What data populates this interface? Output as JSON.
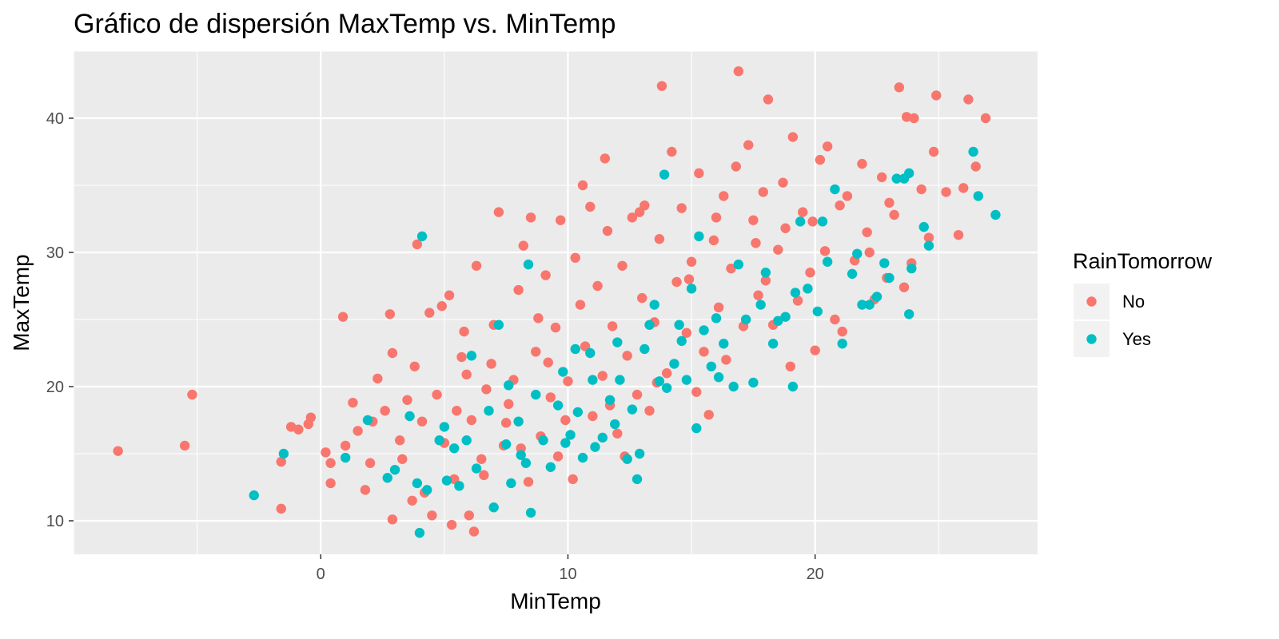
{
  "chart_data": {
    "type": "scatter",
    "title": "Gráfico de dispersión MaxTemp vs. MinTemp",
    "xlabel": "MinTemp",
    "ylabel": "MaxTemp",
    "xlim": [
      -10,
      29
    ],
    "ylim": [
      7.5,
      45
    ],
    "x_ticks": [
      0,
      10,
      20
    ],
    "y_ticks": [
      10,
      20,
      30,
      40
    ],
    "grid": true,
    "legend": {
      "title": "RainTomorrow",
      "position": "right"
    },
    "series": [
      {
        "name": "No",
        "color": "#F8766D",
        "points": [
          [
            -8.2,
            15.2
          ],
          [
            -5.5,
            15.6
          ],
          [
            -5.2,
            19.4
          ],
          [
            -1.6,
            10.9
          ],
          [
            -1.6,
            14.4
          ],
          [
            -1.2,
            17.0
          ],
          [
            -0.9,
            16.8
          ],
          [
            -0.5,
            17.2
          ],
          [
            -0.4,
            17.7
          ],
          [
            0.2,
            15.1
          ],
          [
            0.4,
            12.8
          ],
          [
            0.4,
            14.3
          ],
          [
            0.9,
            25.2
          ],
          [
            1.0,
            15.6
          ],
          [
            1.5,
            16.7
          ],
          [
            1.8,
            12.3
          ],
          [
            2.0,
            14.3
          ],
          [
            2.3,
            20.6
          ],
          [
            2.6,
            18.2
          ],
          [
            2.9,
            10.1
          ],
          [
            2.9,
            22.5
          ],
          [
            2.8,
            25.4
          ],
          [
            3.2,
            16.0
          ],
          [
            3.5,
            19.0
          ],
          [
            3.7,
            11.5
          ],
          [
            3.8,
            21.5
          ],
          [
            3.9,
            30.6
          ],
          [
            4.2,
            12.1
          ],
          [
            4.4,
            25.5
          ],
          [
            4.5,
            10.4
          ],
          [
            4.7,
            19.4
          ],
          [
            4.9,
            26.0
          ],
          [
            5.0,
            15.8
          ],
          [
            5.2,
            26.8
          ],
          [
            5.3,
            9.7
          ],
          [
            5.4,
            13.1
          ],
          [
            5.5,
            18.2
          ],
          [
            5.7,
            22.2
          ],
          [
            5.8,
            24.1
          ],
          [
            6.0,
            10.4
          ],
          [
            6.1,
            17.5
          ],
          [
            6.2,
            9.2
          ],
          [
            6.3,
            29.0
          ],
          [
            6.5,
            14.6
          ],
          [
            6.7,
            19.8
          ],
          [
            6.9,
            21.7
          ],
          [
            7.0,
            24.6
          ],
          [
            7.2,
            33.0
          ],
          [
            7.4,
            15.6
          ],
          [
            7.6,
            18.7
          ],
          [
            7.8,
            20.5
          ],
          [
            8.0,
            27.2
          ],
          [
            8.2,
            30.5
          ],
          [
            8.4,
            12.9
          ],
          [
            8.5,
            32.6
          ],
          [
            8.7,
            22.6
          ],
          [
            8.9,
            16.3
          ],
          [
            9.1,
            28.3
          ],
          [
            9.3,
            19.2
          ],
          [
            9.5,
            24.4
          ],
          [
            9.7,
            32.4
          ],
          [
            9.9,
            17.5
          ],
          [
            10.0,
            20.4
          ],
          [
            10.2,
            13.1
          ],
          [
            10.3,
            29.6
          ],
          [
            10.5,
            26.1
          ],
          [
            10.7,
            23.0
          ],
          [
            10.9,
            33.4
          ],
          [
            11.0,
            17.8
          ],
          [
            11.2,
            27.5
          ],
          [
            11.4,
            20.8
          ],
          [
            11.6,
            31.6
          ],
          [
            11.8,
            24.5
          ],
          [
            12.0,
            16.5
          ],
          [
            12.2,
            29.0
          ],
          [
            12.4,
            22.3
          ],
          [
            12.6,
            32.6
          ],
          [
            12.8,
            19.4
          ],
          [
            13.0,
            26.6
          ],
          [
            13.1,
            33.5
          ],
          [
            13.3,
            18.2
          ],
          [
            13.5,
            24.8
          ],
          [
            13.7,
            31.0
          ],
          [
            13.8,
            42.4
          ],
          [
            14.0,
            21.0
          ],
          [
            14.2,
            37.5
          ],
          [
            14.4,
            27.8
          ],
          [
            14.6,
            33.3
          ],
          [
            14.8,
            24.0
          ],
          [
            15.0,
            29.3
          ],
          [
            15.3,
            35.9
          ],
          [
            15.5,
            22.6
          ],
          [
            15.7,
            17.9
          ],
          [
            15.9,
            30.9
          ],
          [
            16.1,
            25.9
          ],
          [
            16.3,
            34.2
          ],
          [
            16.6,
            28.8
          ],
          [
            16.8,
            36.4
          ],
          [
            16.9,
            43.5
          ],
          [
            17.1,
            24.5
          ],
          [
            17.3,
            38.0
          ],
          [
            17.5,
            32.4
          ],
          [
            17.7,
            26.8
          ],
          [
            17.9,
            34.5
          ],
          [
            18.1,
            41.4
          ],
          [
            18.3,
            24.6
          ],
          [
            18.5,
            30.2
          ],
          [
            18.7,
            35.2
          ],
          [
            19.0,
            21.5
          ],
          [
            19.1,
            38.6
          ],
          [
            19.3,
            26.4
          ],
          [
            19.5,
            33.0
          ],
          [
            19.8,
            28.5
          ],
          [
            20.0,
            22.7
          ],
          [
            20.2,
            36.9
          ],
          [
            20.4,
            30.1
          ],
          [
            20.5,
            37.9
          ],
          [
            20.8,
            25.0
          ],
          [
            21.1,
            24.1
          ],
          [
            21.3,
            34.2
          ],
          [
            21.6,
            29.4
          ],
          [
            21.9,
            36.6
          ],
          [
            22.1,
            31.5
          ],
          [
            22.4,
            26.5
          ],
          [
            22.7,
            35.6
          ],
          [
            22.9,
            28.1
          ],
          [
            23.2,
            32.8
          ],
          [
            23.4,
            42.3
          ],
          [
            23.6,
            27.4
          ],
          [
            23.7,
            40.1
          ],
          [
            23.9,
            29.2
          ],
          [
            24.0,
            40.0
          ],
          [
            24.3,
            34.7
          ],
          [
            24.6,
            31.1
          ],
          [
            24.8,
            37.5
          ],
          [
            24.9,
            41.7
          ],
          [
            25.3,
            34.5
          ],
          [
            25.8,
            31.3
          ],
          [
            26.0,
            34.8
          ],
          [
            26.2,
            41.4
          ],
          [
            26.5,
            36.4
          ],
          [
            26.9,
            40.0
          ],
          [
            8.8,
            25.1
          ],
          [
            9.6,
            14.8
          ],
          [
            10.6,
            35.0
          ],
          [
            12.9,
            33.0
          ],
          [
            11.5,
            37.0
          ],
          [
            14.9,
            28.0
          ],
          [
            16.0,
            32.6
          ],
          [
            17.6,
            30.7
          ],
          [
            18.8,
            31.8
          ],
          [
            6.6,
            13.4
          ],
          [
            7.5,
            17.3
          ],
          [
            9.2,
            21.8
          ],
          [
            4.1,
            17.4
          ],
          [
            3.3,
            14.6
          ],
          [
            2.1,
            17.4
          ],
          [
            1.3,
            18.8
          ],
          [
            5.9,
            20.9
          ],
          [
            8.1,
            15.4
          ],
          [
            12.3,
            14.8
          ],
          [
            11.7,
            18.6
          ],
          [
            13.6,
            20.3
          ],
          [
            15.2,
            19.6
          ],
          [
            16.4,
            22.0
          ],
          [
            18.0,
            27.9
          ],
          [
            19.9,
            32.3
          ],
          [
            21.0,
            33.5
          ],
          [
            22.2,
            30.0
          ],
          [
            23.0,
            33.7
          ]
        ]
      },
      {
        "name": "Yes",
        "color": "#00BFC4",
        "points": [
          [
            -2.7,
            11.9
          ],
          [
            -1.5,
            15.0
          ],
          [
            1.0,
            14.7
          ],
          [
            1.9,
            17.5
          ],
          [
            2.7,
            13.2
          ],
          [
            3.0,
            13.8
          ],
          [
            3.6,
            17.8
          ],
          [
            3.9,
            12.8
          ],
          [
            4.0,
            9.1
          ],
          [
            4.1,
            31.2
          ],
          [
            4.3,
            12.3
          ],
          [
            4.8,
            16.0
          ],
          [
            5.1,
            13.0
          ],
          [
            5.4,
            15.4
          ],
          [
            5.6,
            12.6
          ],
          [
            5.9,
            16.0
          ],
          [
            6.3,
            13.9
          ],
          [
            6.8,
            18.2
          ],
          [
            7.0,
            11.0
          ],
          [
            7.2,
            24.6
          ],
          [
            7.5,
            15.7
          ],
          [
            7.7,
            12.8
          ],
          [
            8.0,
            17.4
          ],
          [
            8.3,
            14.3
          ],
          [
            8.4,
            29.1
          ],
          [
            8.5,
            10.6
          ],
          [
            8.7,
            19.4
          ],
          [
            9.0,
            16.0
          ],
          [
            9.3,
            14.0
          ],
          [
            9.6,
            18.6
          ],
          [
            9.9,
            15.8
          ],
          [
            10.1,
            16.4
          ],
          [
            10.4,
            18.1
          ],
          [
            10.6,
            14.7
          ],
          [
            10.9,
            22.5
          ],
          [
            11.1,
            15.5
          ],
          [
            11.4,
            16.2
          ],
          [
            11.7,
            19.0
          ],
          [
            11.9,
            17.2
          ],
          [
            12.1,
            20.5
          ],
          [
            12.4,
            14.6
          ],
          [
            12.6,
            18.3
          ],
          [
            12.8,
            13.1
          ],
          [
            12.9,
            15.0
          ],
          [
            13.1,
            22.8
          ],
          [
            13.3,
            24.6
          ],
          [
            13.5,
            26.1
          ],
          [
            13.7,
            20.4
          ],
          [
            13.9,
            35.8
          ],
          [
            14.0,
            19.9
          ],
          [
            14.3,
            21.7
          ],
          [
            14.5,
            24.6
          ],
          [
            14.8,
            20.5
          ],
          [
            15.0,
            27.3
          ],
          [
            15.2,
            16.9
          ],
          [
            15.3,
            31.2
          ],
          [
            15.5,
            24.2
          ],
          [
            15.8,
            21.5
          ],
          [
            16.1,
            20.7
          ],
          [
            16.3,
            23.2
          ],
          [
            16.7,
            20.0
          ],
          [
            16.9,
            29.1
          ],
          [
            17.2,
            25.0
          ],
          [
            17.5,
            20.3
          ],
          [
            17.8,
            26.1
          ],
          [
            18.0,
            28.5
          ],
          [
            18.3,
            23.2
          ],
          [
            18.5,
            24.9
          ],
          [
            18.8,
            25.2
          ],
          [
            19.1,
            20.0
          ],
          [
            19.4,
            32.3
          ],
          [
            19.7,
            27.3
          ],
          [
            20.1,
            25.6
          ],
          [
            20.3,
            32.3
          ],
          [
            20.8,
            34.7
          ],
          [
            21.1,
            23.2
          ],
          [
            21.5,
            28.4
          ],
          [
            21.9,
            26.1
          ],
          [
            22.2,
            26.1
          ],
          [
            22.5,
            26.7
          ],
          [
            22.8,
            29.2
          ],
          [
            23.0,
            28.1
          ],
          [
            23.3,
            35.5
          ],
          [
            23.6,
            35.5
          ],
          [
            23.8,
            25.4
          ],
          [
            23.9,
            28.8
          ],
          [
            24.4,
            31.9
          ],
          [
            24.6,
            30.5
          ],
          [
            26.4,
            37.5
          ],
          [
            26.6,
            34.2
          ],
          [
            27.3,
            32.8
          ],
          [
            23.8,
            35.9
          ],
          [
            9.8,
            21.1
          ],
          [
            6.1,
            22.3
          ],
          [
            8.1,
            14.9
          ],
          [
            11.0,
            20.5
          ],
          [
            12.0,
            23.3
          ],
          [
            16.0,
            25.1
          ],
          [
            19.2,
            27.0
          ],
          [
            20.5,
            29.3
          ],
          [
            21.7,
            29.9
          ],
          [
            7.6,
            20.1
          ],
          [
            5.0,
            17.0
          ],
          [
            10.3,
            22.8
          ],
          [
            14.6,
            23.4
          ]
        ]
      }
    ]
  }
}
